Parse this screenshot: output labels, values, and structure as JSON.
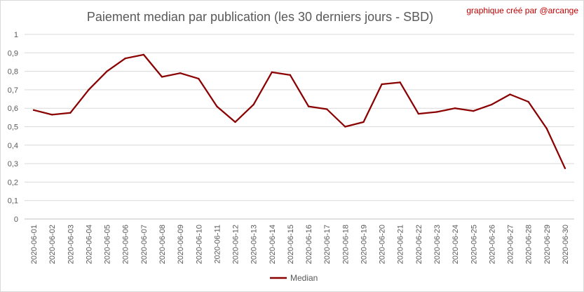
{
  "chart_data": {
    "type": "line",
    "title": "Paiement median par publication (les 30 derniers jours - SBD)",
    "credit": "graphique créé par @arcange",
    "xlabel": "",
    "ylabel": "",
    "ylim": [
      0,
      1
    ],
    "yticks": [
      "0",
      "0,1",
      "0,2",
      "0,3",
      "0,4",
      "0,5",
      "0,6",
      "0,7",
      "0,8",
      "0,9",
      "1"
    ],
    "grid": true,
    "legend_position": "bottom",
    "categories": [
      "2020-06-01",
      "2020-06-02",
      "2020-06-03",
      "2020-06-04",
      "2020-06-05",
      "2020-06-06",
      "2020-06-07",
      "2020-06-08",
      "2020-06-09",
      "2020-06-10",
      "2020-06-11",
      "2020-06-12",
      "2020-06-13",
      "2020-06-14",
      "2020-06-15",
      "2020-06-16",
      "2020-06-17",
      "2020-06-18",
      "2020-06-19",
      "2020-06-20",
      "2020-06-21",
      "2020-06-22",
      "2020-06-23",
      "2020-06-24",
      "2020-06-25",
      "2020-06-26",
      "2020-06-27",
      "2020-06-28",
      "2020-06-29",
      "2020-06-30"
    ],
    "series": [
      {
        "name": "Median",
        "color": "#8b0000",
        "values": [
          0.59,
          0.565,
          0.575,
          0.7,
          0.8,
          0.87,
          0.89,
          0.77,
          0.79,
          0.76,
          0.61,
          0.525,
          0.62,
          0.795,
          0.78,
          0.61,
          0.595,
          0.5,
          0.525,
          0.73,
          0.74,
          0.57,
          0.58,
          0.6,
          0.585,
          0.62,
          0.675,
          0.635,
          0.49,
          0.275
        ]
      }
    ]
  }
}
